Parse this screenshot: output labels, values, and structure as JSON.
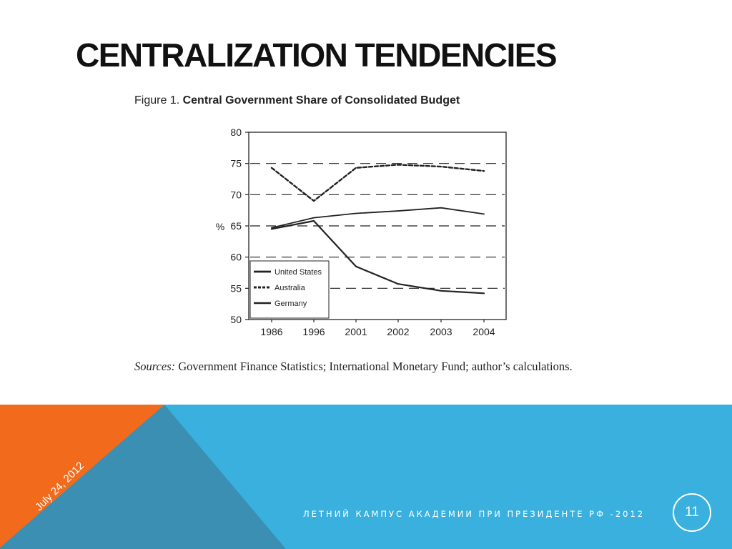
{
  "slide": {
    "title": "CENTRALIZATION TENDENCIES",
    "figure_label": "Figure 1.",
    "figure_title": "Central Government Share of Consolidated Budget",
    "sources_label": "Sources:",
    "sources_text": "Government Finance Statistics; International Monetary Fund; author’s calculations.",
    "footer_text": "ЛЕТНИЙ КАМПУС АКАДЕМИИ ПРИ ПРЕЗИДЕНТЕ РФ -2012",
    "date": "July 24, 2012",
    "page_number": "11"
  },
  "colors": {
    "orange": "#f26b1d",
    "teal": "#3a8fb3",
    "blue": "#3ab0df",
    "ink": "#222222"
  },
  "chart_data": {
    "type": "line",
    "title": "Central Government Share of Consolidated Budget",
    "xlabel": "",
    "ylabel": "%",
    "categories": [
      "1986",
      "1996",
      "2001",
      "2002",
      "2003",
      "2004"
    ],
    "ylim": [
      50,
      80
    ],
    "yticks": [
      50,
      55,
      60,
      65,
      70,
      75,
      80
    ],
    "grid": "horizontal dashed",
    "legend_position": "bottom-left",
    "series": [
      {
        "name": "United States",
        "style": "solid",
        "values": [
          64.5,
          65.8,
          58.5,
          55.7,
          54.6,
          54.2
        ]
      },
      {
        "name": "Australia",
        "style": "dashed",
        "values": [
          74.3,
          69.0,
          74.3,
          74.8,
          74.5,
          73.8
        ]
      },
      {
        "name": "Germany",
        "style": "solid",
        "values": [
          64.7,
          66.3,
          67.0,
          67.4,
          67.9,
          66.9
        ]
      }
    ]
  }
}
